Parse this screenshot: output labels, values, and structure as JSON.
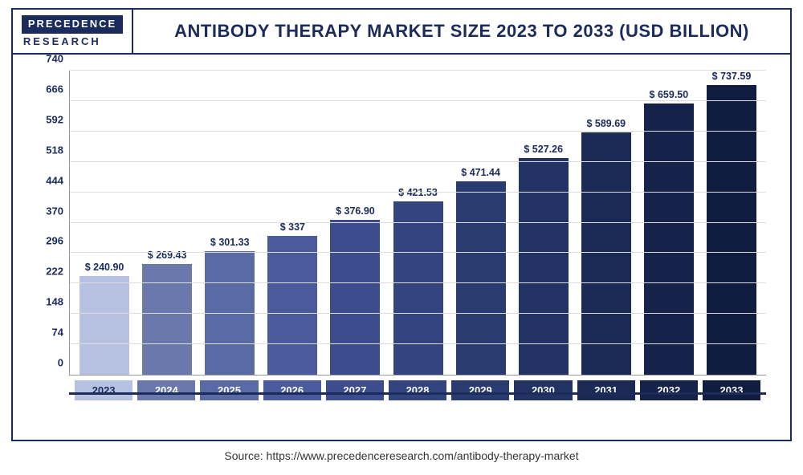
{
  "logo": {
    "top": "PRECEDENCE",
    "bottom": "RESEARCH"
  },
  "title": "ANTIBODY THERAPY MARKET SIZE 2023 TO 2033 (USD BILLION)",
  "source": "Source: https://www.precedenceresearch.com/antibody-therapy-market",
  "chart": {
    "type": "bar",
    "ylim": [
      0,
      740
    ],
    "yticks": [
      0,
      74,
      148,
      222,
      296,
      370,
      444,
      518,
      592,
      666,
      740
    ],
    "grid_color": "#dddddd",
    "axis_color": "#999999",
    "title_color": "#1a2b5c",
    "tick_fontsize": 13,
    "label_fontsize": 12.5,
    "categories": [
      "2023",
      "2024",
      "2025",
      "2026",
      "2027",
      "2028",
      "2029",
      "2030",
      "2031",
      "2032",
      "2033"
    ],
    "values": [
      240.9,
      269.43,
      301.33,
      337,
      376.9,
      421.53,
      471.44,
      527.26,
      589.69,
      659.5,
      737.59
    ],
    "value_labels": [
      "$ 240.90",
      "$ 269.43",
      "$ 301.33",
      "$ 337",
      "$ 376.90",
      "$ 421.53",
      "$ 471.44",
      "$ 527.26",
      "$ 589.69",
      "$ 659.50",
      "$ 737.59"
    ],
    "bar_colors": [
      "#b7c2e3",
      "#6a78ab",
      "#5a6aa5",
      "#4a5a9a",
      "#3c4c8c",
      "#33447e",
      "#2a3b70",
      "#223262",
      "#1b2a55",
      "#15234a",
      "#101c40"
    ],
    "xlabel_bg_colors": [
      "#b7c2e3",
      "#6a78ab",
      "#5a6aa5",
      "#4a5a9a",
      "#3c4c8c",
      "#33447e",
      "#2a3b70",
      "#223262",
      "#1b2a55",
      "#15234a",
      "#101c40"
    ],
    "underline_color": "#1a2b5c"
  }
}
